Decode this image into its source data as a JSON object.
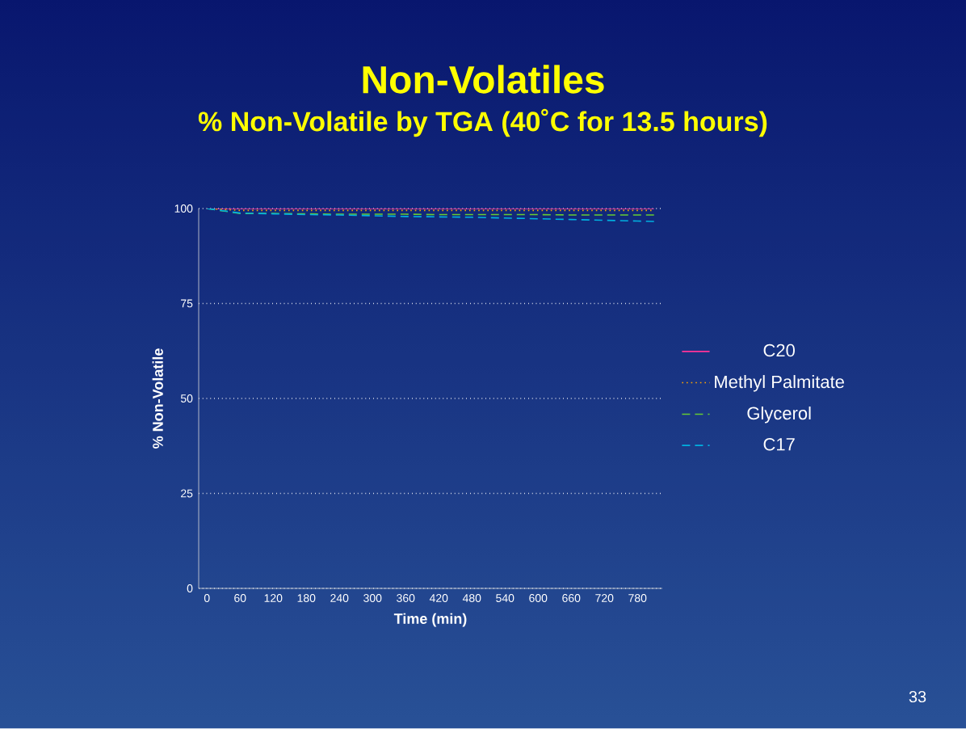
{
  "chart_data": {
    "type": "line",
    "title": "Non-Volatiles",
    "subtitle": "% Non-Volatile by TGA (40˚C for 13.5 hours)",
    "xlabel": "Time (min)",
    "ylabel": "% Non-Volatile",
    "x": [
      0,
      60,
      120,
      180,
      240,
      300,
      360,
      420,
      480,
      540,
      600,
      660,
      720,
      780,
      810
    ],
    "series": [
      {
        "name": "C20",
        "color": "#ff3399",
        "line_style": "solid",
        "values": [
          100,
          100,
          100,
          100,
          100,
          100,
          100,
          100,
          100,
          100,
          100,
          100,
          100,
          100,
          100
        ]
      },
      {
        "name": "Methyl Palmitate",
        "color": "#ffa500",
        "line_style": "dotted",
        "values": [
          100,
          99.5,
          99.5,
          99.5,
          99.5,
          99.5,
          99.5,
          99.5,
          99.5,
          99.5,
          99.5,
          99.5,
          99.5,
          99.5,
          99.5
        ]
      },
      {
        "name": "Glycerol",
        "color": "#66cc33",
        "line_style": "dashed",
        "values": [
          100,
          98.7,
          98.7,
          98.6,
          98.5,
          98.5,
          98.5,
          98.4,
          98.4,
          98.4,
          98.4,
          98.3,
          98.3,
          98.3,
          98.3
        ]
      },
      {
        "name": "C17",
        "color": "#00b0e0",
        "line_style": "dashed",
        "values": [
          100,
          98.8,
          98.6,
          98.4,
          98.3,
          98.1,
          97.9,
          97.8,
          97.7,
          97.5,
          97.3,
          97.1,
          96.9,
          96.7,
          96.6
        ]
      }
    ],
    "xlim": [
      -15,
      825
    ],
    "ylim": [
      0,
      100
    ],
    "xticks": [
      0,
      60,
      120,
      180,
      240,
      300,
      360,
      420,
      480,
      540,
      600,
      660,
      720,
      780
    ],
    "yticks": [
      0,
      25,
      50,
      75,
      100
    ],
    "grid": "y",
    "legend": "right",
    "marker": "none",
    "annotations": [
      "33"
    ]
  }
}
